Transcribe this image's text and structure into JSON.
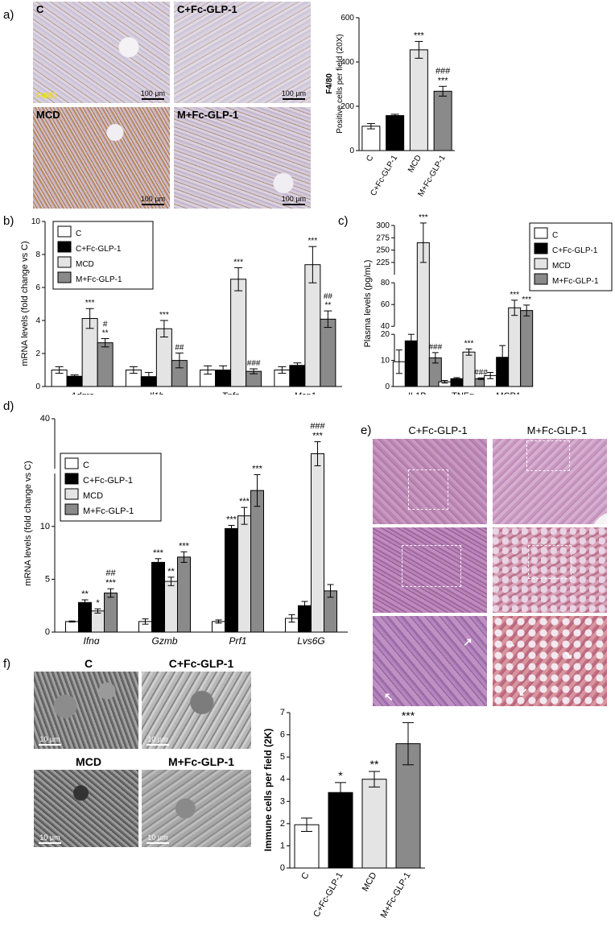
{
  "panels": {
    "a": "a)",
    "b": "b)",
    "c": "c)",
    "d": "d)",
    "e": "e)",
    "f": "f)"
  },
  "panel_a": {
    "images": [
      {
        "label": "C",
        "scale": "100 µm",
        "stain": "F4/80"
      },
      {
        "label": "C+Fc-GLP-1",
        "scale": "100 µm"
      },
      {
        "label": "MCD",
        "scale": "100 µm"
      },
      {
        "label": "M+Fc-GLP-1",
        "scale": "100 µm"
      }
    ]
  },
  "panel_e": {
    "headers": [
      "C+Fc-GLP-1",
      "M+Fc-GLP-1"
    ]
  },
  "panel_f": {
    "images": [
      {
        "label": "C",
        "scale": "10 µm"
      },
      {
        "label": "C+Fc-GLP-1",
        "scale": "10 µm"
      },
      {
        "label": "MCD",
        "scale": "10 µm"
      },
      {
        "label": "M+Fc-GLP-1",
        "scale": "10 µm"
      }
    ]
  },
  "colors": {
    "C": "#ffffff",
    "C+Fc-GLP-1": "#000000",
    "MCD": "#e4e4e4",
    "M+Fc-GLP-1": "#8a8a8a"
  },
  "chart_data": [
    {
      "id": "a",
      "type": "bar",
      "categories": [
        "C",
        "C+Fc-GLP-1",
        "MCD",
        "M+Fc-GLP-1"
      ],
      "values": [
        110,
        158,
        455,
        268
      ],
      "errors": [
        12,
        6,
        38,
        22
      ],
      "annotations": [
        "",
        "",
        "***",
        "###\n***"
      ],
      "ylabel_bold": "F4/80",
      "ylabel": "Positive cells per field (20X)",
      "ylim": [
        0,
        600
      ],
      "yticks": [
        0,
        200,
        400,
        600
      ]
    },
    {
      "id": "b",
      "type": "bar",
      "groups": [
        "Adgre",
        "Il1b",
        "Tnfa",
        "Mcp1"
      ],
      "series": [
        {
          "name": "C",
          "values": [
            1.0,
            1.0,
            1.0,
            1.0
          ],
          "errors": [
            0.2,
            0.2,
            0.25,
            0.2
          ]
        },
        {
          "name": "C+Fc-GLP-1",
          "values": [
            0.62,
            0.6,
            1.0,
            1.28
          ],
          "errors": [
            0.08,
            0.25,
            0.25,
            0.15
          ]
        },
        {
          "name": "MCD",
          "values": [
            4.12,
            3.5,
            6.5,
            7.38
          ],
          "errors": [
            0.6,
            0.5,
            0.7,
            1.1
          ]
        },
        {
          "name": "M+Fc-GLP-1",
          "values": [
            2.65,
            1.58,
            0.92,
            4.08
          ],
          "errors": [
            0.25,
            0.45,
            0.15,
            0.5
          ]
        }
      ],
      "annotations": [
        [
          "",
          "",
          "***",
          "#\n**"
        ],
        [
          "",
          "",
          "***",
          "##"
        ],
        [
          "",
          "",
          "***",
          "###"
        ],
        [
          "",
          "",
          "***",
          "##\n**"
        ]
      ],
      "ylabel": "mRNA levels (fold change vs C)",
      "ylim": [
        0,
        10
      ],
      "yticks": [
        0,
        2,
        4,
        6,
        8,
        10
      ]
    },
    {
      "id": "c",
      "type": "bar",
      "groups": [
        "IL1B",
        "TNFα",
        "MCP1"
      ],
      "series": [
        {
          "name": "C",
          "values": [
            9.5,
            1.8,
            4.2
          ],
          "errors": [
            4.5,
            0.5,
            1.2
          ]
        },
        {
          "name": "C+Fc-GLP-1",
          "values": [
            17.5,
            3.0,
            11.2
          ],
          "errors": [
            2.5,
            0.4,
            4.5
          ]
        },
        {
          "name": "MCD",
          "values": [
            265,
            13.2,
            57
          ],
          "errors": [
            40,
            1.2,
            7
          ]
        },
        {
          "name": "M+Fc-GLP-1",
          "values": [
            11.0,
            3.0,
            54.5
          ],
          "errors": [
            2.0,
            0.3,
            5
          ]
        }
      ],
      "annotations": [
        [
          "",
          "",
          "***",
          "###"
        ],
        [
          "",
          "",
          "***",
          "###"
        ],
        [
          "",
          "",
          "***",
          "***"
        ]
      ],
      "ylabel": "Plasma levels (pg/mL)",
      "axis_breaks": true,
      "segments": [
        {
          "range": [
            0,
            20
          ],
          "ticks": [
            0,
            10,
            20
          ]
        },
        {
          "range": [
            40,
            80
          ],
          "ticks": [
            40,
            60,
            80
          ]
        },
        {
          "range": [
            200,
            300
          ],
          "ticks": [
            225,
            250,
            275,
            300
          ]
        }
      ]
    },
    {
      "id": "d",
      "type": "bar",
      "groups": [
        "Ifng",
        "Gzmb",
        "Prf1",
        "Lys6G"
      ],
      "series": [
        {
          "name": "C",
          "values": [
            1.0,
            1.0,
            1.0,
            1.3
          ],
          "errors": [
            0.05,
            0.25,
            0.15,
            0.35
          ]
        },
        {
          "name": "C+Fc-GLP-1",
          "values": [
            2.8,
            6.6,
            9.8,
            2.5
          ],
          "errors": [
            0.25,
            0.35,
            0.3,
            0.4
          ]
        },
        {
          "name": "MCD",
          "values": [
            2.0,
            4.8,
            11.0,
            36.5
          ],
          "errors": [
            0.2,
            0.4,
            0.8,
            1.2
          ]
        },
        {
          "name": "M+Fc-GLP-1",
          "values": [
            3.7,
            7.1,
            13.4,
            3.9
          ],
          "errors": [
            0.4,
            0.5,
            1.5,
            0.6
          ]
        }
      ],
      "annotations": [
        [
          "",
          "**",
          "*",
          "##\n***"
        ],
        [
          "",
          "***",
          "**",
          "***"
        ],
        [
          "",
          "***",
          "***",
          "***"
        ],
        [
          "",
          "",
          "###\n***",
          ""
        ]
      ],
      "ylabel": "mRNA levels (fold change vs C)",
      "axis_breaks": true,
      "segments": [
        {
          "range": [
            0,
            15
          ],
          "ticks": [
            0,
            5,
            10
          ]
        },
        {
          "range": [
            35,
            40
          ],
          "ticks": [
            40
          ]
        }
      ]
    },
    {
      "id": "f",
      "type": "bar",
      "categories": [
        "C",
        "C+Fc-GLP-1",
        "MCD",
        "M+Fc-GLP-1"
      ],
      "values": [
        1.95,
        3.4,
        4.0,
        5.6
      ],
      "errors": [
        0.3,
        0.45,
        0.35,
        0.95
      ],
      "annotations": [
        "",
        "*",
        "**",
        "***"
      ],
      "ylabel": "Immune cells per field (2K)",
      "ylim": [
        0,
        7
      ],
      "yticks": [
        0,
        1,
        2,
        3,
        4,
        5,
        6,
        7
      ]
    }
  ]
}
